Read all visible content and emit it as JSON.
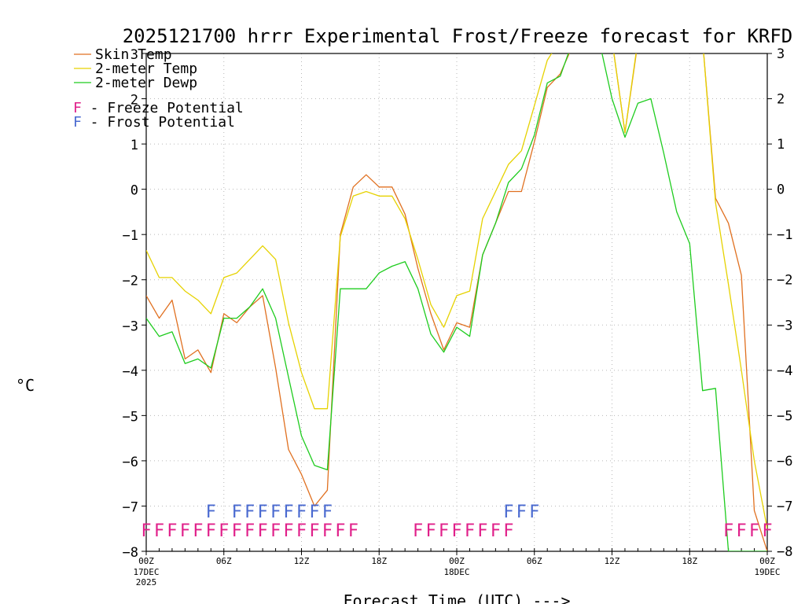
{
  "chart_data": {
    "type": "line",
    "title": "2025121700 hrrr Experimental Frost/Freeze forecast for KRFD",
    "xlabel": "Forecast Time (UTC) --->",
    "ylabel": "°C",
    "ylim": [
      -8,
      3
    ],
    "xlim": [
      0,
      48
    ],
    "yticks": [
      -8,
      -7,
      -6,
      -5,
      -4,
      -3,
      -2,
      -1,
      0,
      1,
      2,
      3
    ],
    "ytick_labels": [
      "−8",
      "−7",
      "−6",
      "−5",
      "−4",
      "−3",
      "−2",
      "−1",
      "0",
      "1",
      "2",
      "3"
    ],
    "xticks": [
      {
        "hour": 0,
        "label": "00Z",
        "sub": [
          "17DEC",
          "2025"
        ]
      },
      {
        "hour": 6,
        "label": "06Z",
        "sub": []
      },
      {
        "hour": 12,
        "label": "12Z",
        "sub": []
      },
      {
        "hour": 18,
        "label": "18Z",
        "sub": []
      },
      {
        "hour": 24,
        "label": "00Z",
        "sub": [
          "18DEC"
        ]
      },
      {
        "hour": 30,
        "label": "06Z",
        "sub": []
      },
      {
        "hour": 36,
        "label": "12Z",
        "sub": []
      },
      {
        "hour": 42,
        "label": "18Z",
        "sub": []
      },
      {
        "hour": 48,
        "label": "00Z",
        "sub": [
          "19DEC"
        ]
      }
    ],
    "series": [
      {
        "name": "Skin Temp",
        "color": "#e07020",
        "x": [
          0,
          1,
          2,
          3,
          4,
          5,
          6,
          7,
          8,
          9,
          10,
          11,
          12,
          13,
          14,
          15,
          16,
          17,
          18,
          19,
          20,
          21,
          22,
          23,
          24,
          25,
          26,
          27,
          28,
          29,
          30,
          31,
          32,
          33,
          33.5,
          35,
          36,
          37,
          38,
          39,
          40,
          41,
          42,
          43,
          44,
          45,
          46,
          47,
          48
        ],
        "y": [
          -2.35,
          -2.85,
          -2.45,
          -3.75,
          -3.55,
          -4.05,
          -2.75,
          -2.95,
          -2.6,
          -2.35,
          -3.95,
          -5.75,
          -6.3,
          -7.0,
          -6.65,
          -1.0,
          0.05,
          0.32,
          0.05,
          0.05,
          -0.55,
          -1.75,
          -2.75,
          -3.55,
          -2.95,
          -3.05,
          -1.45,
          -0.75,
          -0.05,
          -0.05,
          1.05,
          2.25,
          2.55,
          3.2,
          3.3,
          3.3,
          3.3,
          1.25,
          3.25,
          3.3,
          3.3,
          3.3,
          3.3,
          3.3,
          -0.2,
          -0.75,
          -1.9,
          -7.1,
          -8.0
        ]
      },
      {
        "name": "2-meter Temp",
        "color": "#e6d200",
        "x": [
          0,
          1,
          2,
          3,
          4,
          5,
          6,
          7,
          8,
          9,
          10,
          11,
          12,
          13,
          14,
          15,
          16,
          17,
          18,
          19,
          20,
          21,
          22,
          23,
          24,
          25,
          26,
          27,
          28,
          29,
          30,
          31,
          32,
          33,
          33.5,
          35,
          36,
          37,
          38,
          39,
          40,
          41,
          42,
          43,
          44,
          45,
          46,
          47,
          48
        ],
        "y": [
          -1.35,
          -1.95,
          -1.95,
          -2.25,
          -2.45,
          -2.75,
          -1.95,
          -1.85,
          -1.55,
          -1.25,
          -1.55,
          -2.95,
          -4.05,
          -4.85,
          -4.85,
          -1.05,
          -0.15,
          -0.05,
          -0.15,
          -0.15,
          -0.65,
          -1.55,
          -2.55,
          -3.05,
          -2.35,
          -2.25,
          -0.65,
          -0.05,
          0.55,
          0.85,
          1.85,
          2.85,
          3.3,
          3.3,
          3.3,
          3.3,
          3.3,
          1.25,
          3.3,
          3.3,
          3.3,
          3.3,
          3.3,
          3.3,
          -0.3,
          -2.1,
          -4.0,
          -6.0,
          -7.5
        ]
      },
      {
        "name": "2-meter Dewp",
        "color": "#1ecc1e",
        "x": [
          0,
          1,
          2,
          3,
          4,
          5,
          6,
          7,
          8,
          9,
          10,
          11,
          12,
          13,
          14,
          15,
          16,
          17,
          18,
          19,
          20,
          21,
          22,
          23,
          24,
          25,
          26,
          27,
          28,
          29,
          30,
          31,
          32,
          33,
          33.5,
          35,
          36,
          37,
          38,
          39,
          40,
          41,
          42,
          43,
          44,
          45,
          46,
          47,
          48
        ],
        "y": [
          -2.85,
          -3.25,
          -3.15,
          -3.85,
          -3.75,
          -3.95,
          -2.85,
          -2.85,
          -2.6,
          -2.2,
          -2.85,
          -4.15,
          -5.45,
          -6.1,
          -6.2,
          -2.2,
          -2.2,
          -2.2,
          -1.85,
          -1.7,
          -1.6,
          -2.2,
          -3.2,
          -3.6,
          -3.05,
          -3.25,
          -1.45,
          -0.75,
          0.15,
          0.45,
          1.2,
          2.35,
          2.5,
          3.3,
          3.3,
          3.3,
          2.0,
          1.15,
          1.9,
          2.0,
          0.8,
          -0.5,
          -1.2,
          -4.45,
          -4.4,
          -8.0,
          -8.0,
          -8.0,
          -8.0
        ]
      }
    ],
    "legend": {
      "position": "top-left",
      "entries": [
        {
          "label": "Skin Temp",
          "color": "#e07020"
        },
        {
          "label": "2-meter Temp",
          "color": "#e6d200"
        },
        {
          "label": "2-meter Dewp",
          "color": "#1ecc1e"
        }
      ],
      "flag_key": [
        {
          "letter": "F",
          "label": " - Freeze Potential",
          "color": "#e0208a"
        },
        {
          "letter": "F",
          "label": " - Frost Potential",
          "color": "#4a6ad0"
        }
      ]
    },
    "frost_flags": {
      "letter": "F",
      "color": "#4a6ad0",
      "hours": [
        5,
        7,
        8,
        9,
        10,
        11,
        12,
        13,
        14,
        28,
        29,
        30
      ]
    },
    "freeze_flags": {
      "letter": "F",
      "color": "#e0208a",
      "hours": [
        0,
        1,
        2,
        3,
        4,
        5,
        6,
        7,
        8,
        9,
        10,
        11,
        12,
        13,
        14,
        15,
        16,
        21,
        22,
        23,
        24,
        25,
        26,
        27,
        28,
        45,
        46,
        47,
        48
      ]
    }
  }
}
